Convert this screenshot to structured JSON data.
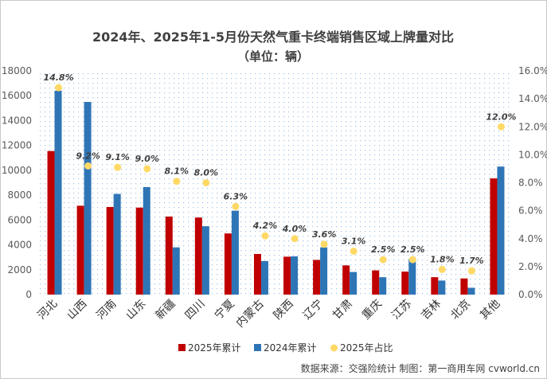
{
  "chart_data": {
    "type": "bar",
    "title": "2024年、2025年1-5月份天然气重卡终端销售区域上牌量对比",
    "subtitle": "（单位：辆）",
    "categories": [
      "河北",
      "山西",
      "河南",
      "山东",
      "新疆",
      "四川",
      "宁夏",
      "内蒙古",
      "陕西",
      "辽宁",
      "甘肃",
      "重庆",
      "江苏",
      "吉林",
      "北京",
      "其他"
    ],
    "series": [
      {
        "name": "2025年累计",
        "color": "#c00000",
        "axis": "left",
        "values": [
          11550,
          7150,
          7050,
          7000,
          6280,
          6200,
          4920,
          3270,
          3050,
          2790,
          2350,
          1950,
          1850,
          1400,
          1300,
          9350
        ]
      },
      {
        "name": "2024年累计",
        "color": "#2e75b6",
        "axis": "left",
        "values": [
          16400,
          15500,
          8100,
          8650,
          3800,
          5500,
          6750,
          2700,
          3080,
          3800,
          1820,
          1400,
          2850,
          1130,
          550,
          10300
        ]
      },
      {
        "name": "2025年占比",
        "color": "#ffd966",
        "axis": "right",
        "marker": "circle",
        "values": [
          14.8,
          9.2,
          9.1,
          9.0,
          8.1,
          8.0,
          6.3,
          4.2,
          4.0,
          3.6,
          3.1,
          2.5,
          2.5,
          1.8,
          1.7,
          12.0
        ],
        "labels": [
          "14.8%",
          "9.2%",
          "9.1%",
          "9.0%",
          "8.1%",
          "8.0%",
          "6.3%",
          "4.2%",
          "4.0%",
          "3.6%",
          "3.1%",
          "2.5%",
          "2.5%",
          "1.8%",
          "1.7%",
          "12.0%"
        ]
      }
    ],
    "ylim": [
      0,
      18000
    ],
    "y_ticks": [
      "0",
      "2000",
      "4000",
      "6000",
      "8000",
      "10000",
      "12000",
      "14000",
      "16000",
      "18000"
    ],
    "y2lim": [
      0,
      16
    ],
    "y2_ticks": [
      "0.0%",
      "2.0%",
      "4.0%",
      "6.0%",
      "8.0%",
      "10.0%",
      "12.0%",
      "14.0%",
      "16.0%"
    ],
    "legend_position": "bottom",
    "plot_background": "dotted pattern"
  },
  "source": "数据来源：交强险统计  制图：第一商用车网 cvworld.cn"
}
